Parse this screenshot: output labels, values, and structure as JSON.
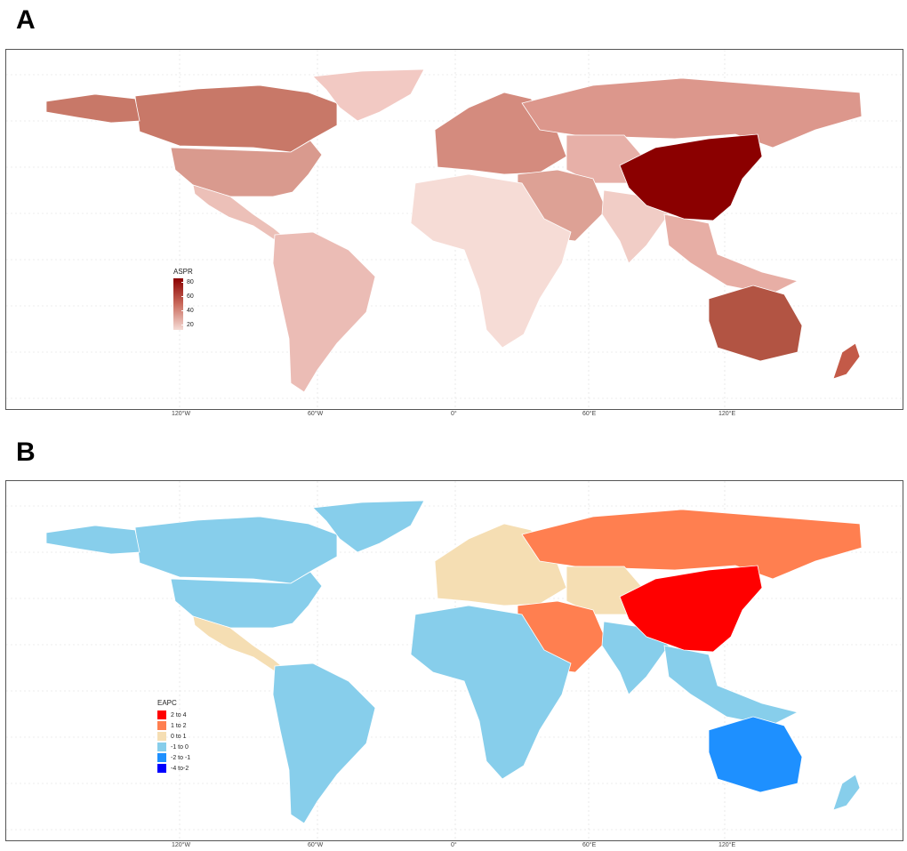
{
  "panels": [
    {
      "letter": "A",
      "legend_title": "ASPR",
      "legend_type": "gradient",
      "legend_ticks": [
        "80",
        "60",
        "40",
        "20"
      ],
      "scale_colors": {
        "low": "#f5dcd6",
        "mid": "#c96a5c",
        "high": "#8b0000"
      }
    },
    {
      "letter": "B",
      "legend_title": "EAPC",
      "legend_type": "categorical",
      "legend_items": [
        {
          "label": "2 to 4",
          "color": "#ff0000"
        },
        {
          "label": "1 to 2",
          "color": "#ff7f50"
        },
        {
          "label": "0 to 1",
          "color": "#f5deb3"
        },
        {
          "label": "-1 to 0",
          "color": "#87ceeb"
        },
        {
          "label": "-2 to -1",
          "color": "#1e90ff"
        },
        {
          "label": "-4 to-2",
          "color": "#0000ff"
        }
      ]
    }
  ],
  "x_axis_ticks": [
    "120°W",
    "60°W",
    "0°",
    "60°E",
    "120°E"
  ],
  "colors": {
    "grid": "#dddddd",
    "frame": "#555555"
  },
  "map_regions": {
    "A": {
      "north_america": "#c87868",
      "usa": "#d99a8e",
      "mexico_central": "#ecc0b8",
      "greenland": "#f2c9c3",
      "south_america": "#ebbcb5",
      "europe": "#d48b7e",
      "russia": "#dc978c",
      "central_asia": "#e7b0a8",
      "middle_east": "#dda195",
      "africa": "#f6dcd6",
      "india": "#f1cdc6",
      "southeast_asia": "#e7aea5",
      "china": "#8b0000",
      "australia": "#b25443",
      "new_zealand": "#c35a48"
    },
    "B": {
      "north_america": "#87ceeb",
      "usa": "#87ceeb",
      "mexico_central": "#f5deb3",
      "greenland": "#87ceeb",
      "south_america": "#87ceeb",
      "europe": "#f5deb3",
      "russia": "#ff7f50",
      "central_asia": "#f5deb3",
      "middle_east": "#ff7f50",
      "africa": "#87ceeb",
      "india": "#87ceeb",
      "southeast_asia": "#87ceeb",
      "china": "#ff0000",
      "australia": "#1e90ff",
      "new_zealand": "#87ceeb"
    }
  }
}
